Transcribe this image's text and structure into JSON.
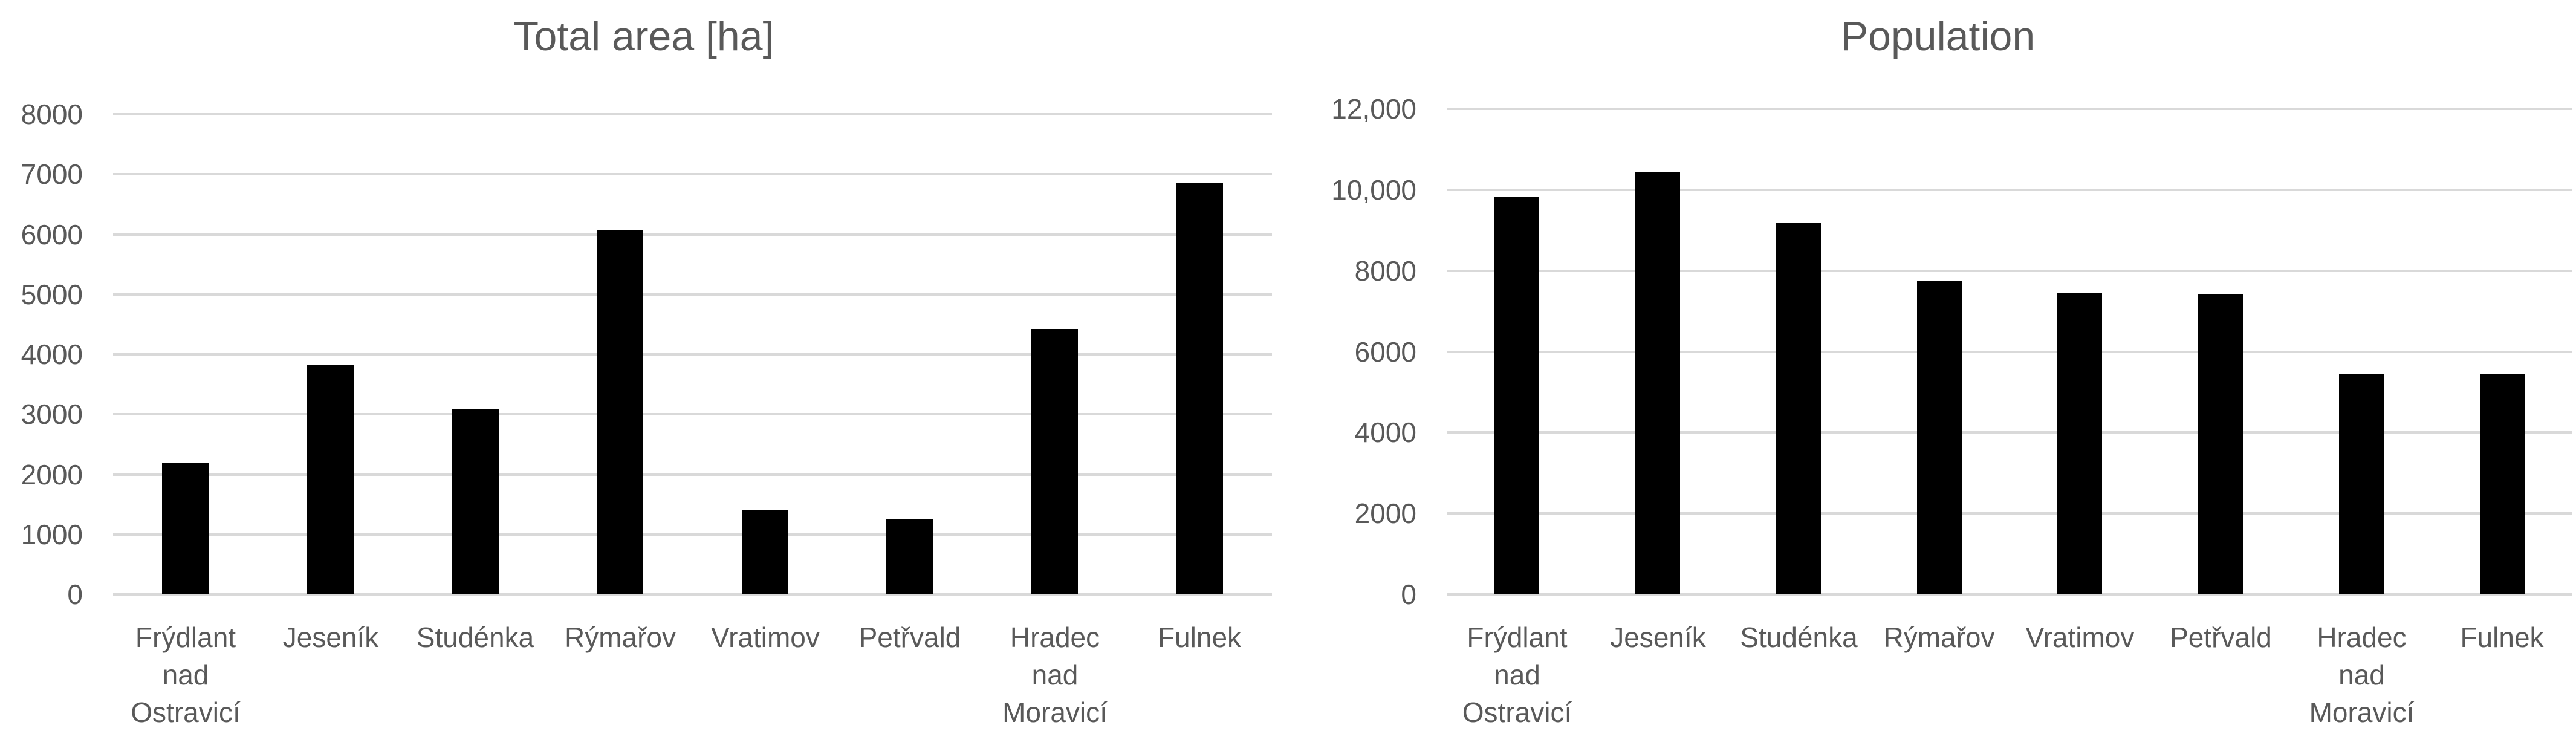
{
  "colors": {
    "background": "#ffffff",
    "text": "#595959",
    "gridline": "#d9d9d9",
    "bar": "#000000"
  },
  "chart_data": [
    {
      "type": "bar",
      "title": "Total area [ha]",
      "xlabel": "",
      "ylabel": "",
      "grid": true,
      "legend": false,
      "bar_color": "#000000",
      "ylim": [
        0,
        8000
      ],
      "categories": [
        "Frýdlant\nnad\nOstravicí",
        "Jeseník",
        "Studénka",
        "Rýmařov",
        "Vratimov",
        "Petřvald",
        "Hradec\nnad\nMoravicí",
        "Fulnek"
      ],
      "values": [
        2190,
        3820,
        3090,
        6080,
        1410,
        1260,
        4420,
        6850
      ],
      "yticks": [
        {
          "label": "8000",
          "value": 8000
        },
        {
          "label": "7000",
          "value": 7000
        },
        {
          "label": "6000",
          "value": 6000
        },
        {
          "label": "5000",
          "value": 5000
        },
        {
          "label": "4000",
          "value": 4000
        },
        {
          "label": "3000",
          "value": 3000
        },
        {
          "label": "2000",
          "value": 2000
        },
        {
          "label": "1000",
          "value": 1000
        },
        {
          "label": "0",
          "value": 0
        }
      ]
    },
    {
      "type": "bar",
      "title": "Population",
      "xlabel": "",
      "ylabel": "",
      "grid": true,
      "legend": false,
      "bar_color": "#000000",
      "ylim": [
        0,
        12000
      ],
      "categories": [
        "Frýdlant\nnad\nOstravicí",
        "Jeseník",
        "Studénka",
        "Rýmařov",
        "Vratimov",
        "Petřvald",
        "Hradec\nnad\nMoravicí",
        "Fulnek"
      ],
      "values": [
        9820,
        10440,
        9180,
        7740,
        7440,
        7420,
        5460,
        5450
      ],
      "yticks": [
        {
          "label": "12,000",
          "value": 12000
        },
        {
          "label": "10,000",
          "value": 10000
        },
        {
          "label": "8000",
          "value": 8000
        },
        {
          "label": "6000",
          "value": 6000
        },
        {
          "label": "4000",
          "value": 4000
        },
        {
          "label": "2000",
          "value": 2000
        },
        {
          "label": "0",
          "value": 0
        }
      ]
    }
  ]
}
